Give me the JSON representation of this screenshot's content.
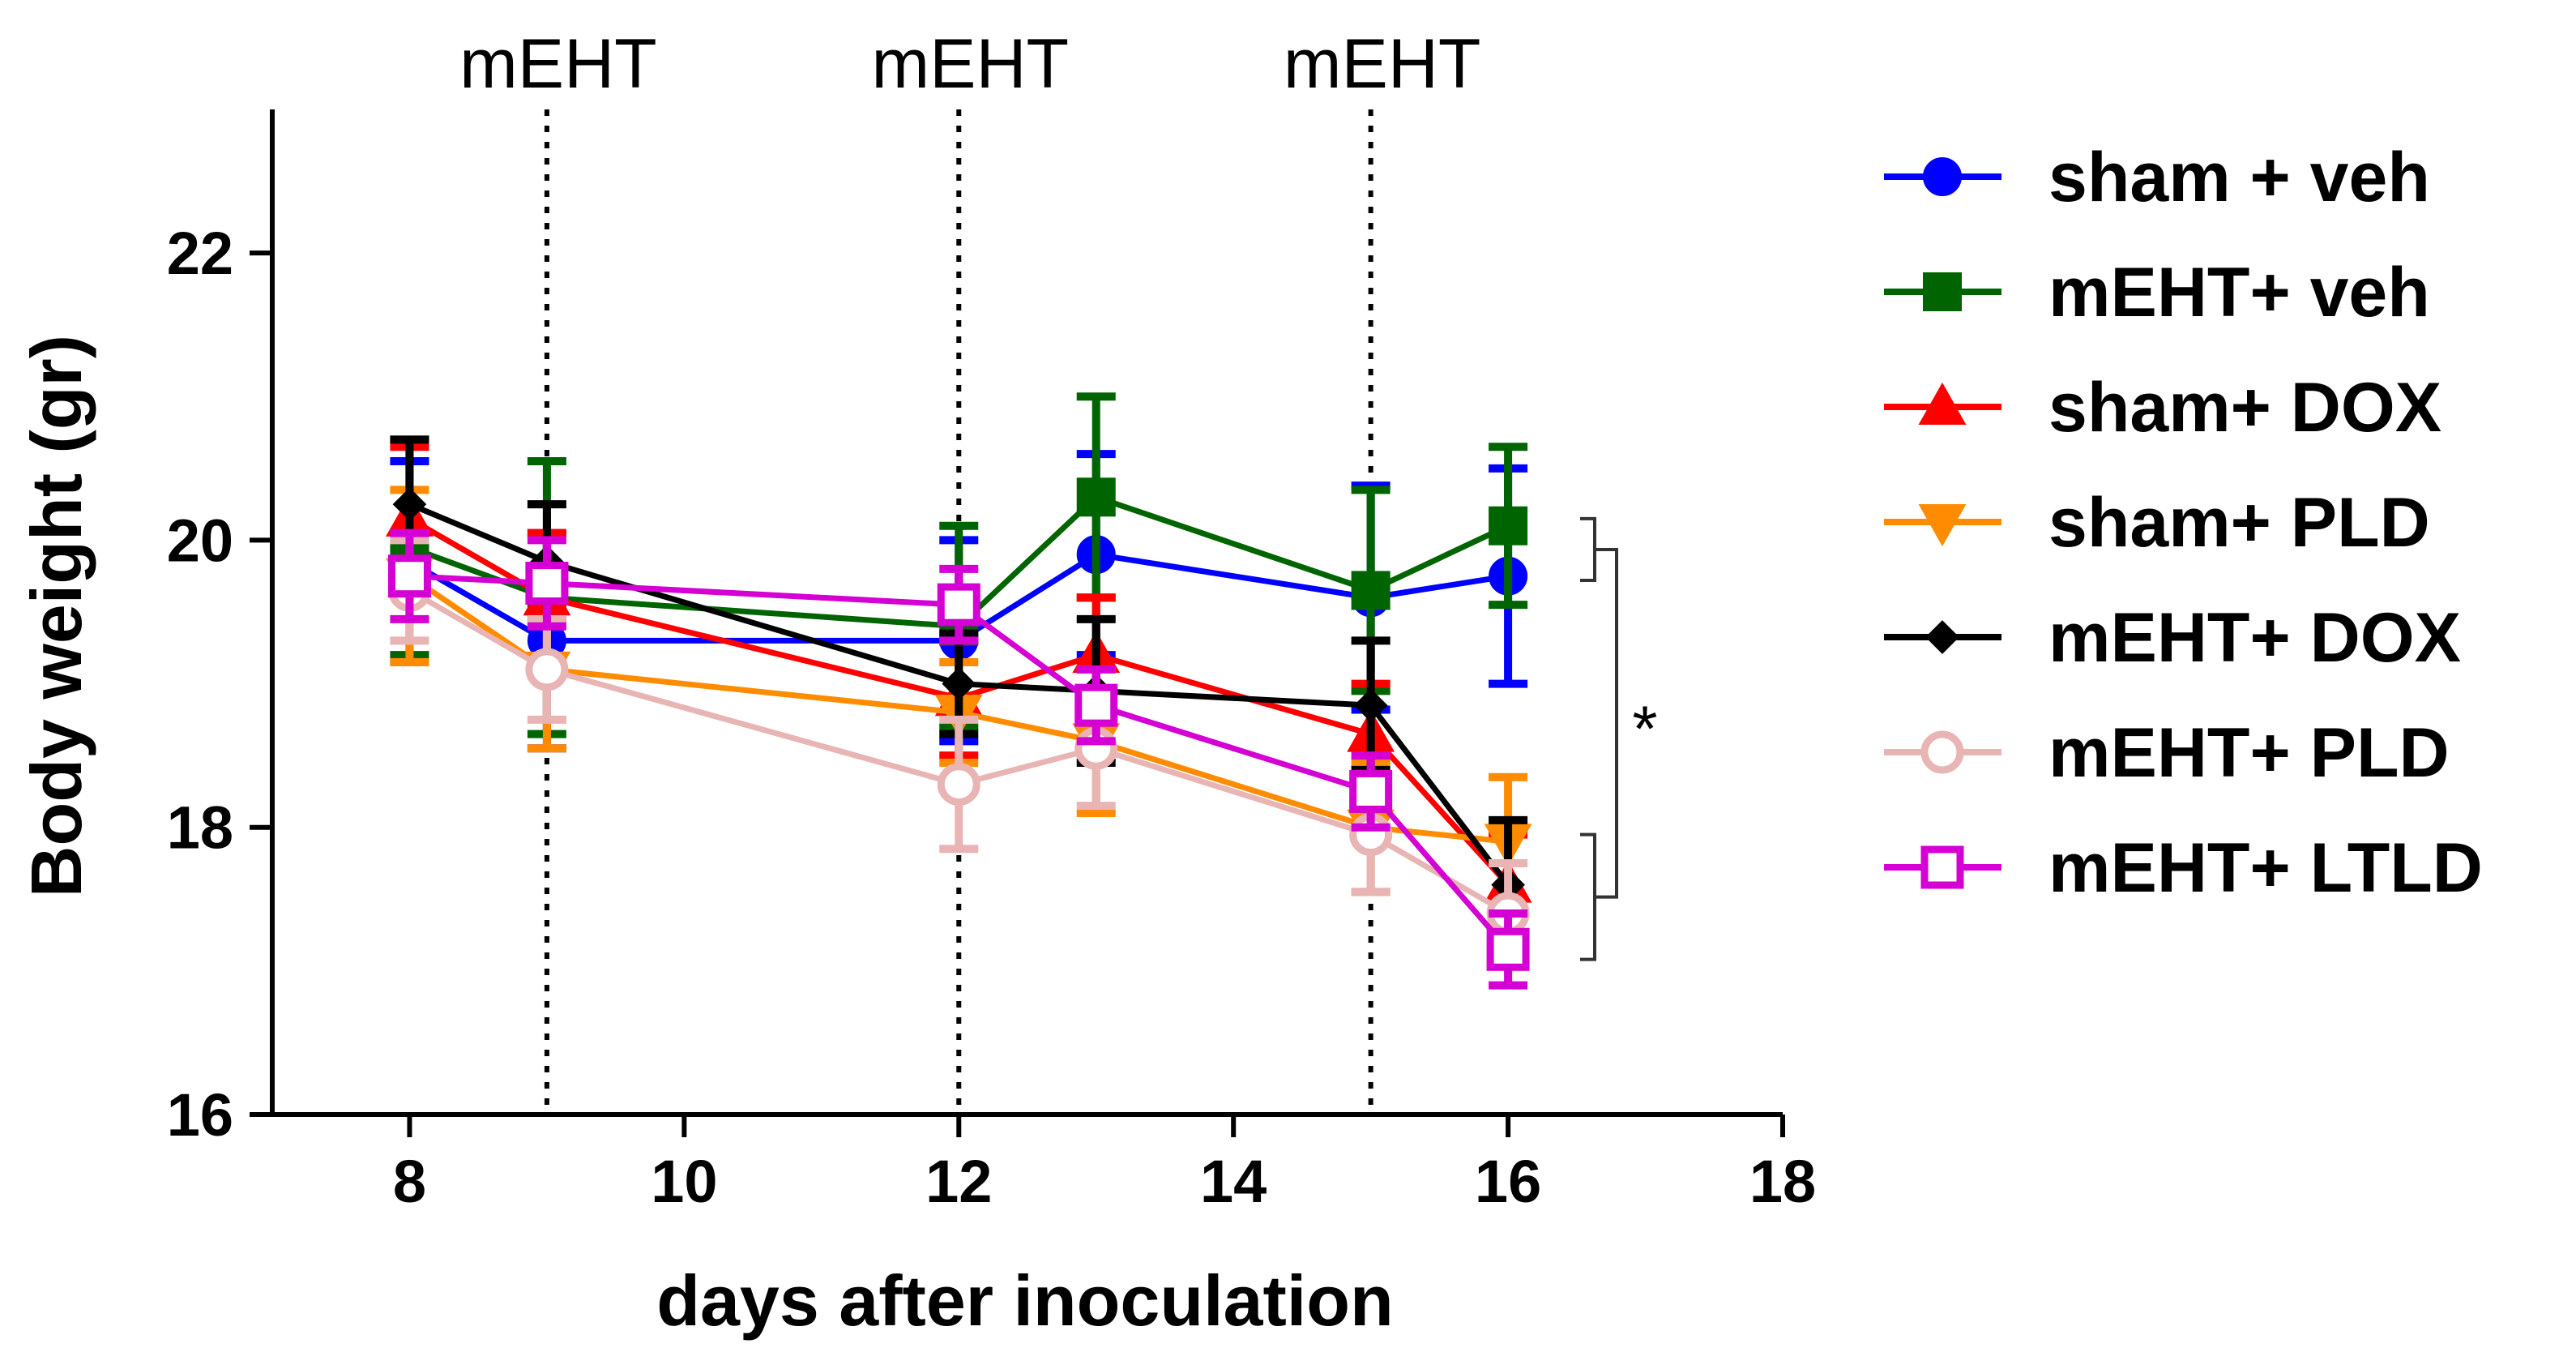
{
  "chart_data": {
    "type": "line",
    "title": "",
    "xlabel": "days after inoculation",
    "ylabel": "Body weight (gr)",
    "xlim": [
      7,
      18
    ],
    "ylim": [
      16,
      23
    ],
    "xticks": [
      8,
      10,
      12,
      14,
      16,
      18
    ],
    "yticks": [
      16,
      18,
      20,
      22
    ],
    "x": [
      8,
      9,
      12,
      13,
      15,
      16
    ],
    "grid": false,
    "legend_position": "right",
    "vertical_markers": [
      {
        "x": 9,
        "label": "mEHT"
      },
      {
        "x": 12,
        "label": "mEHT"
      },
      {
        "x": 15,
        "label": "mEHT"
      }
    ],
    "series": [
      {
        "name": "sham + veh",
        "color": "#0000ff",
        "marker": "circle",
        "filled": true,
        "values": [
          19.85,
          19.3,
          19.3,
          19.9,
          19.6,
          19.75
        ],
        "errors": [
          0.7,
          0.75,
          0.7,
          0.7,
          0.78,
          0.75
        ]
      },
      {
        "name": "mEHT+ veh",
        "color": "#006400",
        "marker": "square",
        "filled": true,
        "values": [
          19.95,
          19.6,
          19.4,
          20.3,
          19.65,
          20.1
        ],
        "errors": [
          0.75,
          0.95,
          0.7,
          0.7,
          0.7,
          0.55
        ]
      },
      {
        "name": "sham+ DOX",
        "color": "#ff0000",
        "marker": "triangle-up",
        "filled": true,
        "values": [
          20.15,
          19.6,
          18.9,
          19.2,
          18.65,
          17.6
        ],
        "errors": [
          0.5,
          0.45,
          0.4,
          0.4,
          0.35,
          0.35
        ]
      },
      {
        "name": "sham+ PLD",
        "color": "#ff8c00",
        "marker": "triangle-down",
        "filled": true,
        "values": [
          19.75,
          19.1,
          18.8,
          18.6,
          18.0,
          17.9
        ],
        "errors": [
          0.6,
          0.55,
          0.35,
          0.5,
          0.45,
          0.45
        ]
      },
      {
        "name": "mEHT+ DOX",
        "color": "#000000",
        "marker": "diamond",
        "filled": true,
        "values": [
          20.25,
          19.85,
          19.0,
          18.95,
          18.85,
          17.6
        ],
        "errors": [
          0.45,
          0.4,
          0.35,
          0.5,
          0.45,
          0.45
        ]
      },
      {
        "name": "mEHT+ PLD",
        "color": "#e8b4b4",
        "marker": "circle",
        "filled": false,
        "values": [
          19.65,
          19.1,
          18.3,
          18.55,
          17.95,
          17.4
        ],
        "errors": [
          0.35,
          0.35,
          0.45,
          0.4,
          0.4,
          0.35
        ]
      },
      {
        "name": "mEHT+ LTLD",
        "color": "#d400d4",
        "marker": "square",
        "filled": false,
        "values": [
          19.75,
          19.7,
          19.55,
          18.85,
          18.25,
          17.15
        ],
        "errors": [
          0.3,
          0.3,
          0.25,
          0.25,
          0.25,
          0.25
        ]
      }
    ],
    "significance": {
      "label": "*",
      "between_groups": [
        "sham + veh / mEHT+ veh",
        "DOX / PLD / LTLD groups"
      ]
    }
  }
}
